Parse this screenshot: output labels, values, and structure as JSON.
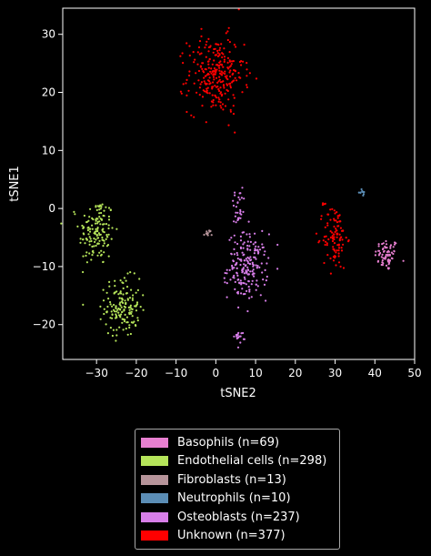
{
  "chart_data": {
    "type": "scatter",
    "title": "",
    "xlabel": "tSNE2",
    "ylabel": "tSNE1",
    "xlim": [
      -38.5,
      50
    ],
    "ylim": [
      -26,
      34.5
    ],
    "xticks": [
      -30,
      -20,
      -10,
      0,
      10,
      20,
      30,
      40,
      50
    ],
    "yticks": [
      -20,
      -10,
      0,
      10,
      20,
      30
    ],
    "grid": false,
    "legend_position": "below",
    "series": [
      {
        "name": "Basophils (n=69)",
        "color": "#e77fd0",
        "n": 69,
        "clusters": [
          {
            "cx": 43,
            "cy": -8,
            "sx": 1.5,
            "sy": 1.4
          }
        ]
      },
      {
        "name": "Endothelial cells (n=298)",
        "color": "#b5e45a",
        "n": 298,
        "clusters": [
          {
            "cx": -30,
            "cy": -4,
            "sx": 2.2,
            "sy": 3.0,
            "w": 0.5
          },
          {
            "cx": -23.5,
            "cy": -17,
            "sx": 2.2,
            "sy": 2.5,
            "w": 0.5
          }
        ]
      },
      {
        "name": "Fibroblasts (n=13)",
        "color": "#b6949a",
        "n": 13,
        "clusters": [
          {
            "cx": -2,
            "cy": -4.3,
            "sx": 0.5,
            "sy": 0.3
          }
        ]
      },
      {
        "name": "Neutrophils (n=10)",
        "color": "#5b8db5",
        "n": 10,
        "clusters": [
          {
            "cx": 36.7,
            "cy": 2.8,
            "sx": 0.4,
            "sy": 0.2
          }
        ]
      },
      {
        "name": "Osteoblasts (n=237)",
        "color": "#d77ee8",
        "n": 237,
        "clusters": [
          {
            "cx": 5.5,
            "cy": 0,
            "sx": 1.0,
            "sy": 2.0,
            "w": 0.13
          },
          {
            "cx": 8,
            "cy": -10,
            "sx": 2.5,
            "sy": 2.8,
            "w": 0.8
          },
          {
            "cx": 6,
            "cy": -22,
            "sx": 0.7,
            "sy": 0.5,
            "w": 0.07
          }
        ]
      },
      {
        "name": "Unknown (n=377)",
        "color": "#ff0000",
        "n": 377,
        "clusters": [
          {
            "cx": 0,
            "cy": 23,
            "sx": 3.5,
            "sy": 3.3,
            "w": 0.72
          },
          {
            "cx": 30,
            "cy": -5,
            "sx": 1.5,
            "sy": 2.8,
            "w": 0.27
          },
          {
            "cx": 27,
            "cy": 0.8,
            "sx": 0.4,
            "sy": 0.2,
            "w": 0.01
          }
        ]
      }
    ]
  }
}
